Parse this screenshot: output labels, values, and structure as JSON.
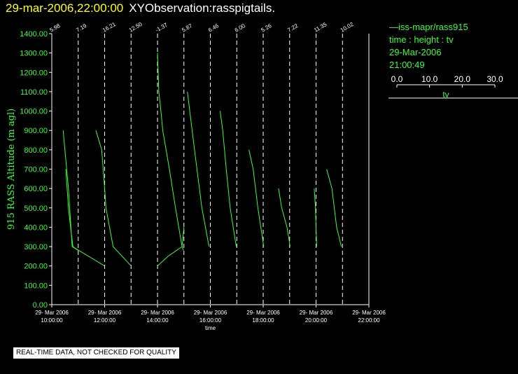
{
  "header": {
    "timestamp": "29-mar-2006,22:00:00",
    "observation": "XYObservation:rasspigtails."
  },
  "legend": {
    "series_name": "iss-mapr/rass915",
    "description": "time : height : tv",
    "date": "29-Mar-2006",
    "time": "21:00:49",
    "scale_ticks": [
      "0.0",
      "10.0",
      "20.0",
      "30.0"
    ],
    "scale_label": "tv"
  },
  "notice": "REAL-TIME DATA, NOT CHECKED FOR QUALITY",
  "colors": {
    "trace": "#33ff33",
    "axes": "#ffffff",
    "background": "#000000",
    "title_accent": "#ffff00"
  },
  "chart_data": {
    "type": "line",
    "title": "XYObservation:rasspigtails.",
    "xlabel": "time",
    "ylabel": "915 RASS Altitude (m agl)",
    "ylim": [
      0,
      1400
    ],
    "xlim": [
      "29-Mar-2006 10:00:00",
      "29-Mar-2006 22:00:00"
    ],
    "y_ticks": [
      "0.00",
      "100.00",
      "200.00",
      "300.00",
      "400.00",
      "500.00",
      "600.00",
      "700.00",
      "800.00",
      "900.00",
      "1000.00",
      "1100.00",
      "1200.00",
      "1300.00",
      "1400.00"
    ],
    "x_ticks": [
      {
        "date": "29- Mar 2006",
        "time": "10:00:00",
        "hour": 10
      },
      {
        "date": "29- Mar 2006",
        "time": "12:00:00",
        "hour": 12
      },
      {
        "date": "29- Mar 2006",
        "time": "14:00:00",
        "hour": 14
      },
      {
        "date": "29- Mar 2006",
        "time": "16:00:00",
        "hour": 16
      },
      {
        "date": "29- Mar 2006",
        "time": "18:00:00",
        "hour": 18
      },
      {
        "date": "29- Mar 2006",
        "time": "20:00:00",
        "hour": 20
      },
      {
        "date": "29- Mar 2006",
        "time": "22:00:00",
        "hour": 22
      }
    ],
    "profiles": [
      {
        "hour": 10,
        "label": "5.98"
      },
      {
        "hour": 11,
        "label": "7.19"
      },
      {
        "hour": 12,
        "label": "16.21"
      },
      {
        "hour": 13,
        "label": "12.50"
      },
      {
        "hour": 14,
        "label": "-1.37"
      },
      {
        "hour": 15,
        "label": "5.87"
      },
      {
        "hour": 16,
        "label": "6.46"
      },
      {
        "hour": 17,
        "label": "6.00"
      },
      {
        "hour": 18,
        "label": "5.26"
      },
      {
        "hour": 19,
        "label": "7.22"
      },
      {
        "hour": 20,
        "label": "11.35"
      },
      {
        "hour": 21,
        "label": "10.02"
      }
    ],
    "series": [
      {
        "points": [
          [
            10.43,
            900
          ],
          [
            10.53,
            750
          ],
          [
            10.63,
            600
          ],
          [
            10.77,
            300
          ],
          [
            11.0,
            280
          ]
        ]
      },
      {
        "points": [
          [
            10.53,
            700
          ],
          [
            10.58,
            600
          ],
          [
            10.63,
            500
          ],
          [
            10.71,
            400
          ],
          [
            10.8,
            300
          ],
          [
            10.9,
            290
          ],
          [
            12.0,
            200
          ]
        ]
      },
      {
        "points": [
          [
            11.67,
            900
          ],
          [
            11.89,
            800
          ],
          [
            12.0,
            600
          ],
          [
            12.05,
            500
          ],
          [
            12.32,
            300
          ],
          [
            13.0,
            200
          ]
        ]
      },
      {
        "points": [
          [
            14.0,
            1300
          ],
          [
            14.05,
            1100
          ],
          [
            14.13,
            1000
          ],
          [
            14.2,
            900
          ],
          [
            14.45,
            700
          ],
          [
            14.68,
            500
          ],
          [
            14.93,
            300
          ],
          [
            14.98,
            280
          ]
        ]
      },
      {
        "points": [
          [
            14.0,
            200
          ],
          [
            14.4,
            250
          ],
          [
            14.93,
            300
          ],
          [
            15.0,
            400
          ]
        ]
      },
      {
        "points": [
          [
            15.13,
            1100
          ],
          [
            15.22,
            1000
          ],
          [
            15.4,
            800
          ],
          [
            15.68,
            500
          ],
          [
            15.95,
            300
          ]
        ]
      },
      {
        "points": [
          [
            16.37,
            1000
          ],
          [
            16.47,
            900
          ],
          [
            16.6,
            700
          ],
          [
            16.75,
            500
          ],
          [
            16.98,
            300
          ]
        ]
      },
      {
        "points": [
          [
            17.46,
            800
          ],
          [
            17.62,
            700
          ],
          [
            17.8,
            500
          ],
          [
            18.02,
            300
          ]
        ]
      },
      {
        "points": [
          [
            18.58,
            600
          ],
          [
            18.7,
            500
          ],
          [
            18.9,
            400
          ],
          [
            19.02,
            300
          ]
        ]
      },
      {
        "points": [
          [
            19.93,
            600
          ],
          [
            19.98,
            500
          ],
          [
            20.02,
            300
          ]
        ]
      },
      {
        "points": [
          [
            20.4,
            700
          ],
          [
            20.6,
            600
          ],
          [
            20.78,
            400
          ],
          [
            20.96,
            300
          ]
        ]
      }
    ]
  }
}
